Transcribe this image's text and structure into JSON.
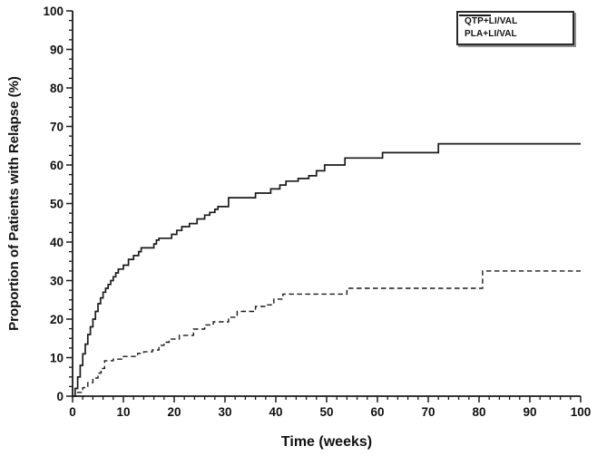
{
  "figure": {
    "background": "#ffffff",
    "ink_color": "#1a1a1a",
    "legend_shadow_color": "#8f8f8f"
  },
  "chart_data": {
    "type": "line",
    "subtype": "kaplan-meier-step",
    "title": "",
    "xlabel": "Time (weeks)",
    "ylabel": "Proportion of Patients with Relapse (%)",
    "xlim": [
      0,
      100
    ],
    "ylim": [
      0,
      100
    ],
    "x_major_ticks": [
      0,
      10,
      20,
      30,
      40,
      50,
      60,
      70,
      80,
      90,
      100
    ],
    "y_major_ticks": [
      0,
      10,
      20,
      30,
      40,
      50,
      60,
      70,
      80,
      90,
      100
    ],
    "x_minor_step": 2,
    "y_minor_step": 2.5,
    "grid": false,
    "legend_position": "top-right",
    "series": [
      {
        "name": "QTP+LI/VAL",
        "style": "dashed",
        "color": "#1a1a1a",
        "points": [
          [
            0,
            0
          ],
          [
            1,
            1
          ],
          [
            2,
            2.2
          ],
          [
            3,
            3.5
          ],
          [
            4,
            4.7
          ],
          [
            5,
            6
          ],
          [
            5.6,
            7.2
          ],
          [
            6.3,
            9.2
          ],
          [
            8,
            9.6
          ],
          [
            10,
            10.3
          ],
          [
            12.8,
            11.1
          ],
          [
            14,
            11.5
          ],
          [
            15.7,
            12
          ],
          [
            17,
            13.2
          ],
          [
            18,
            14
          ],
          [
            19,
            14.8
          ],
          [
            21,
            15.8
          ],
          [
            23.8,
            17.4
          ],
          [
            26,
            18.5
          ],
          [
            27.7,
            19.3
          ],
          [
            30.7,
            20.5
          ],
          [
            32.4,
            22
          ],
          [
            36,
            23.3
          ],
          [
            38,
            23.7
          ],
          [
            39.6,
            25.2
          ],
          [
            41.4,
            26.5
          ],
          [
            54,
            28
          ],
          [
            80.7,
            32.5
          ],
          [
            100,
            32.5
          ]
        ]
      },
      {
        "name": "PLA+LI/VAL",
        "style": "solid",
        "color": "#1a1a1a",
        "points": [
          [
            0,
            0
          ],
          [
            0.5,
            2
          ],
          [
            1,
            5
          ],
          [
            1.5,
            8
          ],
          [
            2,
            11
          ],
          [
            2.5,
            13.5
          ],
          [
            3,
            16
          ],
          [
            3.5,
            18
          ],
          [
            4,
            20
          ],
          [
            4.5,
            22
          ],
          [
            5,
            24
          ],
          [
            5.5,
            25.5
          ],
          [
            6,
            27
          ],
          [
            6.5,
            28
          ],
          [
            7,
            29
          ],
          [
            7.5,
            30
          ],
          [
            8,
            31
          ],
          [
            8.5,
            32
          ],
          [
            9,
            33
          ],
          [
            10,
            34
          ],
          [
            11,
            35.5
          ],
          [
            12,
            36.5
          ],
          [
            13,
            37.5
          ],
          [
            13.5,
            38.5
          ],
          [
            16,
            39.5
          ],
          [
            16.5,
            40.5
          ],
          [
            17,
            41
          ],
          [
            19.5,
            42
          ],
          [
            20.5,
            43
          ],
          [
            21.5,
            44
          ],
          [
            23,
            44.8
          ],
          [
            24.5,
            46
          ],
          [
            26,
            47
          ],
          [
            27,
            47.7
          ],
          [
            28,
            48.5
          ],
          [
            28.6,
            49.2
          ],
          [
            30.7,
            51.5
          ],
          [
            36,
            52.7
          ],
          [
            39,
            53.8
          ],
          [
            40.8,
            54.8
          ],
          [
            42,
            55.8
          ],
          [
            44.4,
            56.5
          ],
          [
            46.5,
            57.2
          ],
          [
            48,
            58.5
          ],
          [
            49.6,
            60
          ],
          [
            53.6,
            61.8
          ],
          [
            61,
            63.2
          ],
          [
            72,
            65.5
          ],
          [
            100,
            65.5
          ]
        ]
      }
    ]
  }
}
